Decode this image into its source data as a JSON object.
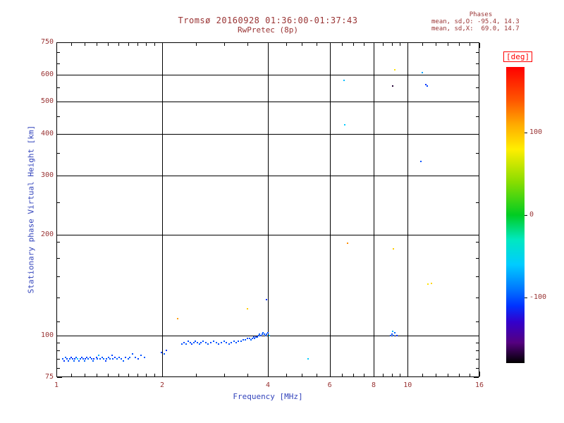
{
  "title": {
    "line1": "Tromsø 20160928 01:36:00-01:37:43",
    "line2": "RwPretec (8p)"
  },
  "stats": {
    "header": "Phases",
    "line1": "mean, sd,O: -95.4, 14.3",
    "line2": "mean, sd,X:  69.0, 14.7"
  },
  "axes": {
    "x": {
      "label": "Frequency [MHz]",
      "min": 1,
      "max": 16,
      "scale": "log",
      "major_ticks": [
        1,
        2,
        4,
        6,
        8,
        10,
        16
      ],
      "minor_ticks": [
        1.1,
        1.2,
        1.3,
        1.4,
        1.5,
        1.6,
        1.7,
        1.8,
        1.9,
        2.5,
        3,
        3.5,
        4.5,
        5,
        5.5,
        6.5,
        7,
        7.5,
        8.5,
        9,
        9.5,
        11,
        12,
        13,
        14,
        15
      ],
      "gridlines": [
        2,
        4,
        6,
        8,
        10
      ]
    },
    "y": {
      "label": "Stationary phase Virtual Height [km]",
      "min": 75,
      "max": 750,
      "scale": "log",
      "major_ticks": [
        75,
        100,
        200,
        300,
        400,
        500,
        600,
        750
      ],
      "minor_ticks": [
        80,
        85,
        90,
        95,
        110,
        130,
        150,
        170,
        190,
        250,
        350,
        450,
        550,
        650,
        700
      ],
      "gridlines": [
        100,
        200,
        300,
        400,
        500,
        600
      ]
    }
  },
  "colorbar": {
    "label": "[deg]",
    "min": -180,
    "max": 180,
    "ticks": [
      100,
      0,
      -100
    ],
    "stops": [
      [
        -180,
        "#000000"
      ],
      [
        -155,
        "#550080"
      ],
      [
        -130,
        "#3300cc"
      ],
      [
        -110,
        "#0033ff"
      ],
      [
        -90,
        "#0077ff"
      ],
      [
        -60,
        "#00ccff"
      ],
      [
        -30,
        "#00e8c0"
      ],
      [
        0,
        "#00cc22"
      ],
      [
        40,
        "#88dd00"
      ],
      [
        80,
        "#ffee00"
      ],
      [
        110,
        "#ffaa00"
      ],
      [
        140,
        "#ff5500"
      ],
      [
        180,
        "#ff0000"
      ]
    ]
  },
  "colors": {
    "background": "#ffffff",
    "title_text": "#993333",
    "tick_label_text": "#993333",
    "axis_label_text": "#3344bb",
    "frame": "#000000",
    "deg_label": "#ff0000"
  },
  "chart_data": {
    "type": "scatter",
    "title": "Tromsø 20160928 01:36:00-01:37:43  RwPretec (8p)",
    "xlabel": "Frequency [MHz]",
    "ylabel": "Stationary phase Virtual Height [km]",
    "xscale": "log",
    "yscale": "log",
    "xlim": [
      1,
      16
    ],
    "ylim": [
      75,
      750
    ],
    "grid": true,
    "color_variable": "phase [deg]",
    "color_range": [
      -180,
      180
    ],
    "point_format": [
      "frequency_MHz",
      "virtual_height_km",
      "phase_deg"
    ],
    "points": [
      [
        1.04,
        85,
        -100
      ],
      [
        1.05,
        84,
        -110
      ],
      [
        1.06,
        86,
        -95
      ],
      [
        1.07,
        85,
        -105
      ],
      [
        1.08,
        84,
        -100
      ],
      [
        1.09,
        85,
        -98
      ],
      [
        1.1,
        86,
        -112
      ],
      [
        1.11,
        85,
        -104
      ],
      [
        1.12,
        84,
        -96
      ],
      [
        1.13,
        85,
        -108
      ],
      [
        1.14,
        86,
        -100
      ],
      [
        1.15,
        85,
        -60
      ],
      [
        1.16,
        84,
        -102
      ],
      [
        1.17,
        85,
        -99
      ],
      [
        1.18,
        86,
        -107
      ],
      [
        1.19,
        85,
        -101
      ],
      [
        1.2,
        84,
        -95
      ],
      [
        1.21,
        85,
        -110
      ],
      [
        1.22,
        86,
        -103
      ],
      [
        1.23,
        85,
        -97
      ],
      [
        1.25,
        86,
        -105
      ],
      [
        1.26,
        85,
        -100
      ],
      [
        1.27,
        84,
        -98
      ],
      [
        1.28,
        85,
        -112
      ],
      [
        1.3,
        86,
        -104
      ],
      [
        1.31,
        85,
        -99
      ],
      [
        1.32,
        87,
        -70
      ],
      [
        1.33,
        85,
        -103
      ],
      [
        1.35,
        86,
        -100
      ],
      [
        1.36,
        85,
        -96
      ],
      [
        1.38,
        84,
        -108
      ],
      [
        1.39,
        85,
        -102
      ],
      [
        1.41,
        86,
        -100
      ],
      [
        1.42,
        85,
        -98
      ],
      [
        1.44,
        87,
        -105
      ],
      [
        1.45,
        85,
        -100
      ],
      [
        1.47,
        86,
        -110
      ],
      [
        1.49,
        85,
        -95
      ],
      [
        1.51,
        86,
        -103
      ],
      [
        1.53,
        85,
        -101
      ],
      [
        1.55,
        84,
        -99
      ],
      [
        1.57,
        86,
        -104
      ],
      [
        1.6,
        85,
        -100
      ],
      [
        1.62,
        86,
        -97
      ],
      [
        1.65,
        88,
        -102
      ],
      [
        1.68,
        86,
        -100
      ],
      [
        1.71,
        85,
        -106
      ],
      [
        1.74,
        87,
        -101
      ],
      [
        1.78,
        86,
        -98
      ],
      [
        1.99,
        89,
        -104
      ],
      [
        2.03,
        88,
        -100
      ],
      [
        2.06,
        90,
        -108
      ],
      [
        2.28,
        94,
        -100
      ],
      [
        2.31,
        95,
        -105
      ],
      [
        2.34,
        94,
        -98
      ],
      [
        2.37,
        96,
        -102
      ],
      [
        2.4,
        95,
        -100
      ],
      [
        2.43,
        94,
        -107
      ],
      [
        2.46,
        95,
        -99
      ],
      [
        2.49,
        96,
        -103
      ],
      [
        2.52,
        95,
        -101
      ],
      [
        2.55,
        94,
        -96
      ],
      [
        2.58,
        95,
        -104
      ],
      [
        2.62,
        96,
        -100
      ],
      [
        2.66,
        95,
        -102
      ],
      [
        2.7,
        94,
        -99
      ],
      [
        2.75,
        95,
        -105
      ],
      [
        2.8,
        96,
        -100
      ],
      [
        2.85,
        95,
        -97
      ],
      [
        2.9,
        94,
        -103
      ],
      [
        2.95,
        95,
        -101
      ],
      [
        3.0,
        96,
        -98
      ],
      [
        3.05,
        95,
        -104
      ],
      [
        3.1,
        94,
        -100
      ],
      [
        3.15,
        95,
        -102
      ],
      [
        3.2,
        96,
        -99
      ],
      [
        3.25,
        95,
        -101
      ],
      [
        3.3,
        96,
        -103
      ],
      [
        3.35,
        96,
        -100
      ],
      [
        3.4,
        97,
        -102
      ],
      [
        3.45,
        97,
        -98
      ],
      [
        3.5,
        98,
        -104
      ],
      [
        3.55,
        98,
        -100
      ],
      [
        3.58,
        97,
        -96
      ],
      [
        3.61,
        98,
        -101
      ],
      [
        3.64,
        99,
        -103
      ],
      [
        3.67,
        98,
        -99
      ],
      [
        3.7,
        99,
        -105
      ],
      [
        3.73,
        99,
        -100
      ],
      [
        3.76,
        100,
        -101
      ],
      [
        3.79,
        101,
        -98
      ],
      [
        3.82,
        100,
        -103
      ],
      [
        3.85,
        101,
        -100
      ],
      [
        3.88,
        102,
        -97
      ],
      [
        3.91,
        101,
        -104
      ],
      [
        3.94,
        100,
        -100
      ],
      [
        3.97,
        101,
        -99
      ],
      [
        4.0,
        102,
        -102
      ],
      [
        4.03,
        100,
        -70
      ],
      [
        2.21,
        112,
        115
      ],
      [
        3.5,
        120,
        95
      ],
      [
        3.96,
        128,
        -110
      ],
      [
        5.2,
        85,
        -60
      ],
      [
        6.6,
        577,
        -65
      ],
      [
        6.62,
        425,
        -60
      ],
      [
        6.75,
        188,
        120
      ],
      [
        9.2,
        620,
        85
      ],
      [
        9.05,
        555,
        -170
      ],
      [
        9.1,
        181,
        95
      ],
      [
        8.95,
        100,
        -100
      ],
      [
        9.0,
        101,
        -105
      ],
      [
        9.1,
        100,
        -98
      ],
      [
        9.2,
        102,
        -95
      ],
      [
        9.3,
        100,
        -110
      ],
      [
        9.05,
        103,
        -70
      ],
      [
        11.0,
        608,
        -75
      ],
      [
        11.25,
        560,
        -110
      ],
      [
        11.35,
        555,
        -105
      ],
      [
        10.9,
        331,
        -100
      ],
      [
        11.4,
        142,
        85
      ],
      [
        11.7,
        143,
        90
      ]
    ]
  }
}
